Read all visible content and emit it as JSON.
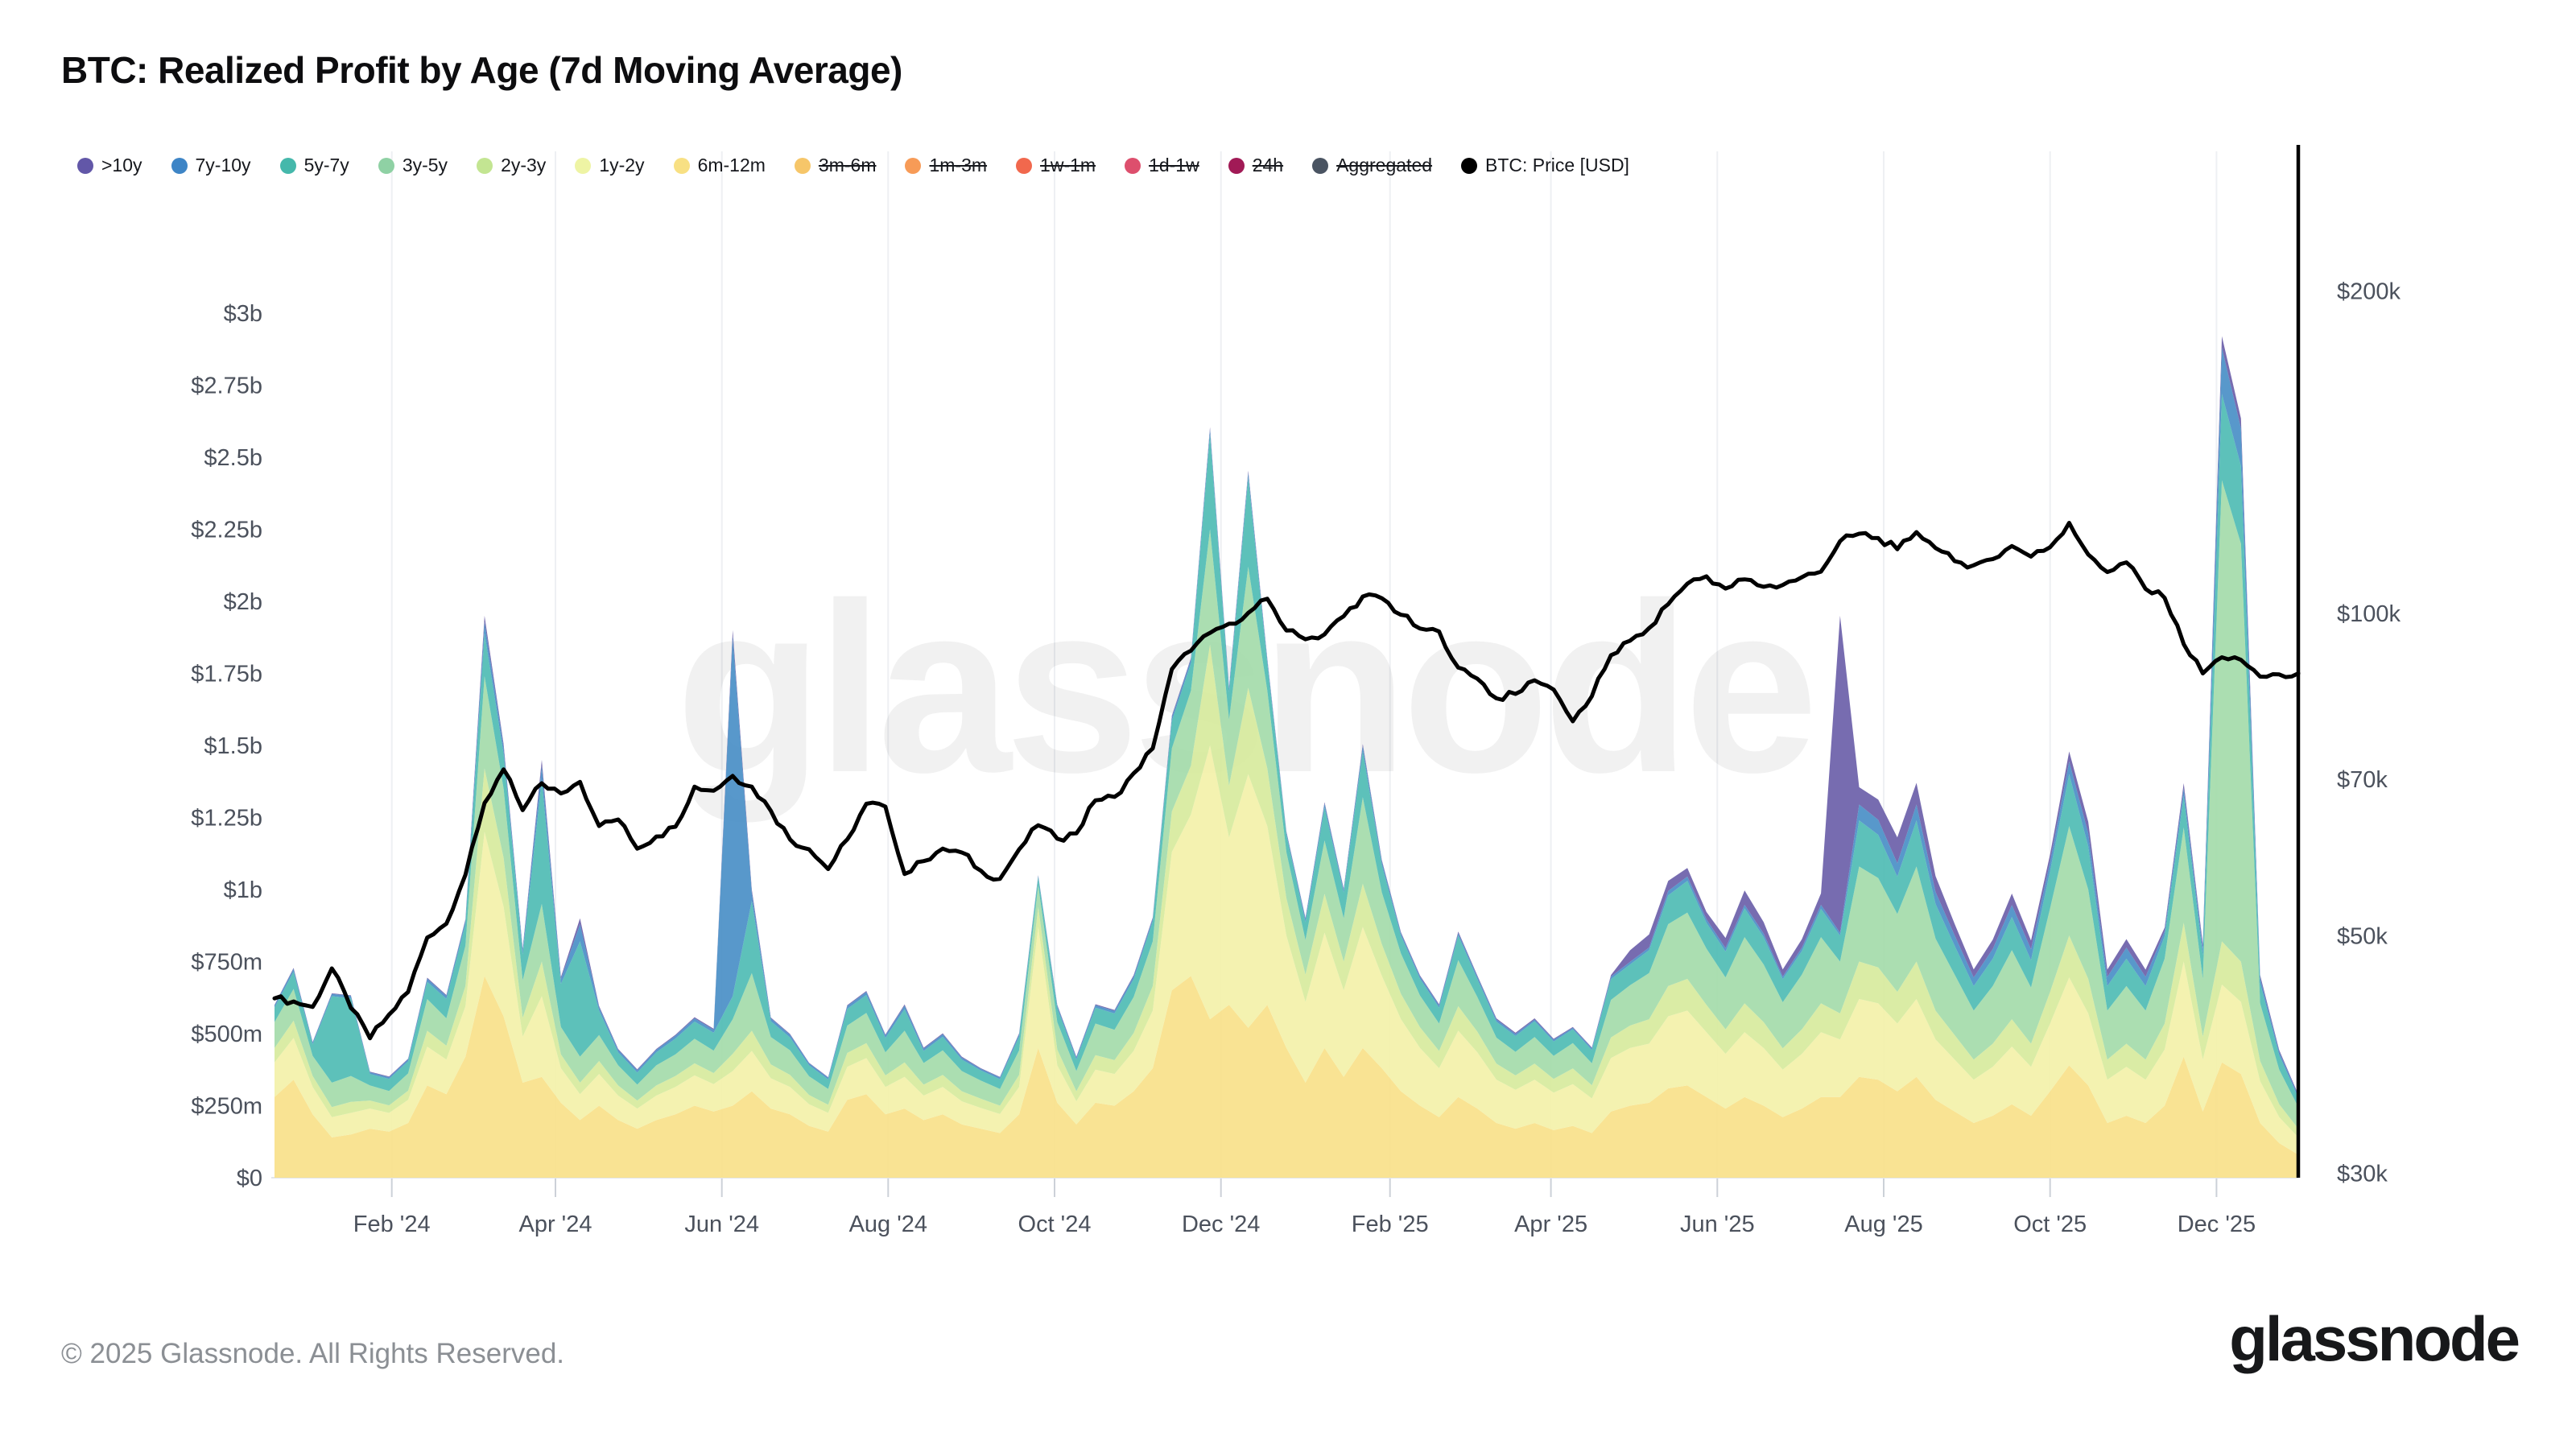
{
  "header": {
    "title": "BTC: Realized Profit by Age (7d Moving Average)"
  },
  "watermark": {
    "text": "glassnode"
  },
  "footer": {
    "copyright": "© 2025 Glassnode. All Rights Reserved.",
    "logo": "glassnode"
  },
  "legend": {
    "items": [
      {
        "label": ">10y",
        "color": "#6257a8",
        "struck": false
      },
      {
        "label": "7y-10y",
        "color": "#3e85c6",
        "struck": false
      },
      {
        "label": "5y-7y",
        "color": "#45b8ab",
        "struck": false
      },
      {
        "label": "3y-5y",
        "color": "#8fd1a4",
        "struck": false
      },
      {
        "label": "2y-3y",
        "color": "#c3e592",
        "struck": false
      },
      {
        "label": "1y-2y",
        "color": "#eef4a4",
        "struck": false
      },
      {
        "label": "6m-12m",
        "color": "#f8e083",
        "struck": false
      },
      {
        "label": "3m-6m",
        "color": "#f6c669",
        "struck": true
      },
      {
        "label": "1m-3m",
        "color": "#f79b57",
        "struck": true
      },
      {
        "label": "1w-1m",
        "color": "#f1684d",
        "struck": true
      },
      {
        "label": "1d-1w",
        "color": "#dd4f6d",
        "struck": true
      },
      {
        "label": "24h",
        "color": "#a11a56",
        "struck": true
      },
      {
        "label": "Aggregated",
        "color": "#4a5462",
        "struck": true
      },
      {
        "label": "BTC: Price [USD]",
        "color": "#000000",
        "struck": false
      }
    ]
  },
  "axes": {
    "y_left": {
      "labels": [
        "$3b",
        "$2.75b",
        "$2.5b",
        "$2.25b",
        "$2b",
        "$1.75b",
        "$1.5b",
        "$1.25b",
        "$1b",
        "$750m",
        "$500m",
        "$250m",
        "$0"
      ],
      "values_musd": [
        3000,
        2750,
        2500,
        2250,
        2000,
        1750,
        1500,
        1250,
        1000,
        750,
        500,
        250,
        0
      ]
    },
    "y_right": {
      "labels": [
        "$200k",
        "$100k",
        "$70k",
        "$50k",
        "$30k"
      ],
      "values_usd": [
        200000,
        100000,
        70000,
        50000,
        30000
      ]
    },
    "x": {
      "labels": [
        "Feb '24",
        "Apr '24",
        "Jun '24",
        "Aug '24",
        "Oct '24",
        "Dec '24",
        "Feb '25",
        "Apr '25",
        "Jun '25",
        "Aug '25",
        "Oct '25",
        "Dec '25"
      ],
      "tick_dates": [
        "2024-02-01",
        "2024-04-01",
        "2024-06-01",
        "2024-08-01",
        "2024-10-01",
        "2024-12-01",
        "2025-02-01",
        "2025-04-01",
        "2025-06-01",
        "2025-08-01",
        "2025-10-01",
        "2025-12-01"
      ]
    }
  },
  "chart_data": {
    "type": "area",
    "stacked": true,
    "title": "BTC: Realized Profit by Age (7d Moving Average)",
    "x_start": "2023-12-20",
    "x_step_days": 7,
    "n_points": 107,
    "left_axis": {
      "unit": "USD",
      "range_musd": [
        0,
        3000
      ],
      "scale": "linear",
      "grid": false
    },
    "right_axis": {
      "unit": "USD",
      "range_usd": [
        30000,
        200000
      ],
      "scale": "log",
      "grid": false
    },
    "legend_position": "top-left",
    "disabled_series": [
      "3m-6m",
      "1m-3m",
      "1w-1m",
      "1d-1w",
      "24h",
      "Aggregated"
    ],
    "series": [
      {
        "name": "6m-12m",
        "color": "#f9e18a",
        "unit": "musd",
        "values": [
          280,
          340,
          220,
          140,
          150,
          170,
          160,
          190,
          320,
          290,
          420,
          700,
          560,
          330,
          350,
          260,
          200,
          250,
          200,
          170,
          200,
          220,
          250,
          230,
          250,
          300,
          240,
          220,
          180,
          160,
          270,
          290,
          220,
          240,
          200,
          220,
          185,
          170,
          155,
          220,
          450,
          260,
          185,
          260,
          250,
          300,
          380,
          650,
          700,
          550,
          600,
          520,
          600,
          450,
          330,
          450,
          350,
          450,
          380,
          300,
          250,
          210,
          280,
          240,
          190,
          170,
          190,
          165,
          180,
          155,
          230,
          250,
          260,
          310,
          320,
          280,
          240,
          280,
          250,
          210,
          240,
          280,
          280,
          350,
          340,
          300,
          350,
          270,
          230,
          190,
          215,
          255,
          215,
          300,
          390,
          320,
          190,
          215,
          190,
          250,
          420,
          230,
          400,
          360,
          190,
          120,
          80
        ]
      },
      {
        "name": "1y-2y",
        "color": "#f3f1a9",
        "unit": "musd",
        "values": [
          120,
          145,
          95,
          70,
          75,
          70,
          65,
          80,
          135,
          120,
          175,
          500,
          380,
          160,
          280,
          120,
          90,
          110,
          85,
          70,
          85,
          95,
          105,
          95,
          120,
          140,
          105,
          95,
          75,
          65,
          115,
          125,
          95,
          110,
          85,
          95,
          80,
          72,
          66,
          95,
          420,
          130,
          80,
          115,
          110,
          140,
          200,
          480,
          560,
          950,
          580,
          880,
          620,
          390,
          280,
          400,
          300,
          420,
          320,
          250,
          200,
          170,
          230,
          195,
          150,
          135,
          150,
          130,
          145,
          120,
          185,
          200,
          205,
          250,
          260,
          225,
          190,
          225,
          200,
          165,
          190,
          225,
          200,
          270,
          265,
          235,
          270,
          210,
          180,
          150,
          170,
          200,
          170,
          235,
          305,
          250,
          150,
          170,
          150,
          195,
          330,
          180,
          270,
          250,
          145,
          90,
          60
        ]
      },
      {
        "name": "2y-3y",
        "color": "#d7ea9d",
        "unit": "musd",
        "values": [
          50,
          60,
          38,
          35,
          38,
          28,
          26,
          32,
          55,
          48,
          70,
          220,
          170,
          65,
          120,
          48,
          40,
          45,
          35,
          28,
          35,
          38,
          42,
          38,
          60,
          70,
          48,
          42,
          32,
          28,
          48,
          52,
          40,
          50,
          38,
          42,
          35,
          32,
          29,
          42,
          70,
          55,
          35,
          50,
          48,
          62,
          85,
          140,
          170,
          350,
          180,
          300,
          200,
          130,
          95,
          135,
          100,
          150,
          110,
          88,
          72,
          60,
          85,
          72,
          56,
          50,
          56,
          48,
          54,
          46,
          72,
          78,
          85,
          105,
          110,
          95,
          85,
          100,
          90,
          74,
          85,
          100,
          90,
          130,
          125,
          110,
          130,
          100,
          85,
          70,
          80,
          95,
          80,
          110,
          145,
          120,
          70,
          80,
          70,
          90,
          135,
          80,
          150,
          140,
          70,
          45,
          30
        ]
      },
      {
        "name": "3y-5y",
        "color": "#a4dbaa",
        "unit": "musd",
        "values": [
          90,
          110,
          70,
          85,
          90,
          52,
          50,
          60,
          110,
          95,
          140,
          320,
          240,
          130,
          200,
          95,
          90,
          90,
          70,
          55,
          70,
          75,
          85,
          78,
          120,
          200,
          95,
          85,
          65,
          55,
          95,
          105,
          80,
          110,
          75,
          85,
          70,
          63,
          58,
          85,
          75,
          95,
          70,
          110,
          105,
          125,
          155,
          220,
          260,
          400,
          230,
          420,
          270,
          160,
          120,
          185,
          150,
          300,
          180,
          140,
          110,
          95,
          160,
          120,
          90,
          82,
          92,
          80,
          88,
          76,
          130,
          140,
          160,
          215,
          230,
          195,
          180,
          230,
          200,
          160,
          190,
          230,
          180,
          330,
          310,
          270,
          330,
          250,
          210,
          170,
          200,
          240,
          195,
          290,
          380,
          310,
          170,
          200,
          170,
          225,
          330,
          200,
          1600,
          1450,
          200,
          120,
          75
        ]
      },
      {
        "name": "5y-7y",
        "color": "#4fbcb4",
        "unit": "musd",
        "values": [
          50,
          60,
          40,
          300,
          270,
          40,
          42,
          42,
          60,
          68,
          75,
          150,
          120,
          90,
          430,
          150,
          400,
          85,
          45,
          42,
          45,
          55,
          60,
          62,
          80,
          250,
          55,
          45,
          38,
          33,
          58,
          62,
          50,
          75,
          42,
          47,
          40,
          35,
          34,
          48,
          28,
          48,
          40,
          55,
          57,
          62,
          70,
          95,
          95,
          330,
          95,
          310,
          95,
          60,
          62,
          115,
          90,
          160,
          95,
          62,
          58,
          55,
          85,
          62,
          55,
          55,
          55,
          50,
          48,
          46,
          72,
          72,
          80,
          100,
          110,
          90,
          90,
          100,
          95,
          80,
          82,
          98,
          90,
          160,
          150,
          130,
          160,
          120,
          100,
          85,
          95,
          115,
          95,
          130,
          180,
          150,
          85,
          95,
          85,
          78,
          110,
          82,
          300,
          270,
          70,
          50,
          32
        ]
      },
      {
        "name": "7y-10y",
        "color": "#4a8fc7",
        "unit": "musd",
        "values": [
          8,
          10,
          6,
          8,
          8,
          6,
          6,
          7,
          11,
          10,
          13,
          40,
          25,
          15,
          50,
          17,
          60,
          12,
          9,
          8,
          9,
          10,
          11,
          10,
          1250,
          30,
          10,
          9,
          7,
          6,
          10,
          11,
          9,
          12,
          8,
          9,
          7,
          6,
          6,
          8,
          5,
          9,
          7,
          9,
          9,
          10,
          9,
          13,
          13,
          17,
          13,
          16,
          12,
          8,
          11,
          13,
          9,
          18,
          12,
          8,
          8,
          8,
          9,
          9,
          8,
          7,
          6,
          6,
          5,
          6,
          9,
          9,
          9,
          15,
          15,
          12,
          12,
          12,
          12,
          9,
          11,
          14,
          10,
          55,
          52,
          46,
          55,
          42,
          36,
          30,
          34,
          41,
          38,
          32,
          44,
          45,
          32,
          38,
          32,
          18,
          26,
          24,
          160,
          130,
          18,
          12,
          8
        ]
      },
      {
        "name": ">10y",
        "color": "#6b5fa9",
        "unit": "musd",
        "values": [
          2,
          3,
          2,
          2,
          2,
          2,
          2,
          2,
          3,
          3,
          4,
          20,
          10,
          5,
          20,
          6,
          20,
          4,
          3,
          3,
          3,
          3,
          4,
          4,
          20,
          10,
          3,
          3,
          2,
          2,
          3,
          3,
          3,
          4,
          3,
          3,
          3,
          2,
          2,
          3,
          2,
          3,
          3,
          3,
          3,
          4,
          4,
          5,
          5,
          7,
          5,
          7,
          5,
          4,
          4,
          5,
          4,
          7,
          5,
          4,
          4,
          4,
          5,
          4,
          4,
          4,
          4,
          3,
          3,
          3,
          5,
          40,
          45,
          35,
          30,
          25,
          35,
          50,
          40,
          25,
          30,
          40,
          1100,
          60,
          70,
          90,
          75,
          55,
          40,
          28,
          32,
          40,
          30,
          25,
          35,
          40,
          25,
          30,
          25,
          12,
          18,
          15,
          40,
          35,
          10,
          6,
          4
        ]
      }
    ],
    "price_series": {
      "name": "BTC: Price [USD]",
      "color": "#000000",
      "axis": "right",
      "unit": "kusd",
      "values": [
        43.7,
        43.4,
        42.9,
        46.6,
        42.8,
        40.1,
        42.2,
        44.3,
        49.8,
        51.3,
        57.0,
        66.5,
        71.5,
        65.5,
        69.4,
        67.9,
        69.6,
        63.3,
        64.2,
        60.3,
        61.9,
        63.2,
        68.9,
        68.3,
        70.5,
        68.9,
        65.4,
        61.5,
        60.2,
        57.7,
        61.5,
        66.4,
        66.0,
        57.1,
        58.7,
        60.3,
        59.8,
        57.5,
        56.5,
        60.2,
        63.4,
        61.6,
        62.3,
        66.9,
        67.4,
        70.9,
        74.8,
        88.7,
        92.3,
        95.9,
        97.8,
        100.1,
        103.2,
        96.4,
        94.6,
        95.6,
        99.4,
        103.7,
        103.3,
        99.7,
        96.8,
        96.2,
        89.0,
        86.9,
        83.3,
        84.1,
        86.6,
        84.9,
        79.3,
        83.7,
        91.4,
        94.3,
        96.9,
        102.0,
        106.6,
        108.3,
        105.5,
        107.6,
        105.9,
        106.3,
        108.1,
        109.4,
        116.8,
        118.7,
        117.6,
        114.8,
        119.1,
        115.1,
        111.9,
        110.9,
        112.4,
        115.6,
        113.0,
        115.3,
        121.5,
        113.5,
        109.3,
        111.6,
        105.4,
        103.4,
        93.6,
        87.9,
        91.0,
        90.5,
        87.3,
        87.7,
        87.9
      ]
    }
  }
}
